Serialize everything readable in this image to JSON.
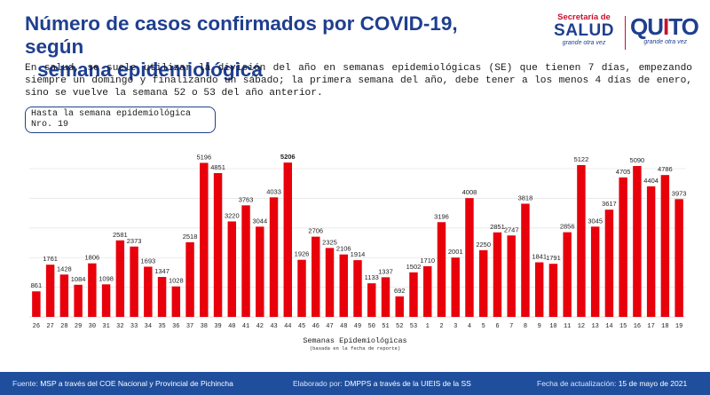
{
  "title_line1": "Número de casos confirmados por COVID-19, según",
  "title_line2": "semana epidemiológica",
  "description": "En salud, se suele utilizar la división del año en semanas epidemiológicas (SE) que tienen 7 días, empezando siempre un domingo y finalizando un sábado; la primera semana del año, debe tener a los menos 4 días de enero, sino se vuelve la semana 52 o 53 del año anterior.",
  "note_line1": "Hasta la semana epidemiológica",
  "note_line2": "Nro. 19",
  "logos": {
    "salud_top": "Secretaría de",
    "salud_main": "SALUD",
    "salud_tag": "grande otra vez",
    "quito_main": "QUITO",
    "quito_tag": "grande otra vez"
  },
  "footer": {
    "source_label": "Fuente:",
    "source_value": "MSP a través del COE Nacional y Provincial de Pichincha",
    "made_label": "Elaborado por:",
    "made_value": "DMPPS a través de la UIEIS de la SS",
    "update_label": "Fecha de actualización:",
    "update_value": "15 de mayo de 2021"
  },
  "colors": {
    "bar": "#e8000b",
    "title": "#1f3f8f",
    "footer": "#1f4e9c"
  },
  "chart_data": {
    "type": "bar",
    "xlabel": "Semanas Epidemiológicas",
    "xlabel_sub": "(basada en la fecha de reporte)",
    "ylabel": "",
    "ylim": [
      0,
      5600
    ],
    "grid": true,
    "legend": "none",
    "categories": [
      "26",
      "27",
      "28",
      "29",
      "30",
      "31",
      "32",
      "33",
      "34",
      "35",
      "36",
      "37",
      "38",
      "39",
      "40",
      "41",
      "42",
      "43",
      "44",
      "45",
      "46",
      "47",
      "48",
      "49",
      "50",
      "51",
      "52",
      "53",
      "1",
      "2",
      "3",
      "4",
      "5",
      "6",
      "7",
      "8",
      "9",
      "10",
      "11",
      "12",
      "13",
      "14",
      "15",
      "16",
      "17",
      "18",
      "19"
    ],
    "values": [
      861,
      1761,
      1428,
      1084,
      1806,
      1098,
      2581,
      2373,
      1693,
      1347,
      1028,
      2518,
      5196,
      4851,
      3220,
      3763,
      3044,
      4033,
      5206,
      1926,
      2706,
      2325,
      2106,
      1914,
      1133,
      1337,
      692,
      1502,
      1710,
      3196,
      2001,
      4008,
      2250,
      2851,
      2747,
      3818,
      1841,
      1791,
      2856,
      5122,
      3045,
      3617,
      4705,
      5090,
      4404,
      4786,
      3973
    ]
  }
}
